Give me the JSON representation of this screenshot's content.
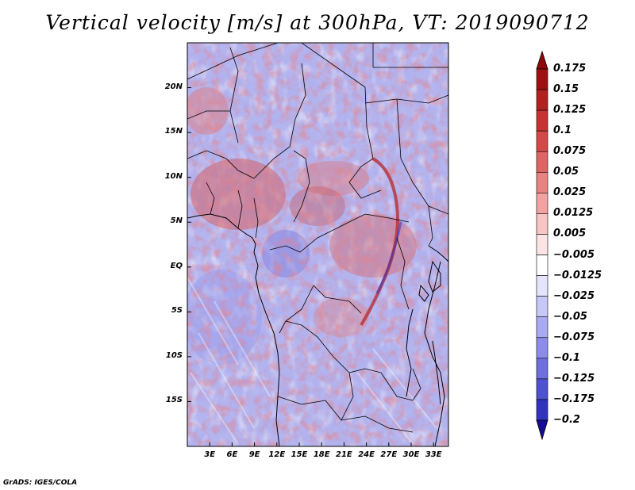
{
  "title": "Vertical velocity [m/s] at 300hPa, VT: 2019090712",
  "credit": "GrADS: IGES/COLA",
  "map": {
    "lon_range": [
      0,
      35
    ],
    "lat_range": [
      -20,
      25
    ],
    "lat_ticks": [
      {
        "value": 20,
        "label": "20N"
      },
      {
        "value": 15,
        "label": "15N"
      },
      {
        "value": 10,
        "label": "10N"
      },
      {
        "value": 5,
        "label": "5N"
      },
      {
        "value": 0,
        "label": "EQ"
      },
      {
        "value": -5,
        "label": "5S"
      },
      {
        "value": -10,
        "label": "10S"
      },
      {
        "value": -15,
        "label": "15S"
      }
    ],
    "lon_ticks": [
      {
        "value": 3,
        "label": "3E"
      },
      {
        "value": 6,
        "label": "6E"
      },
      {
        "value": 9,
        "label": "9E"
      },
      {
        "value": 12,
        "label": "12E"
      },
      {
        "value": 15,
        "label": "15E"
      },
      {
        "value": 18,
        "label": "18E"
      },
      {
        "value": 21,
        "label": "21E"
      },
      {
        "value": 24,
        "label": "24E"
      },
      {
        "value": 27,
        "label": "27E"
      },
      {
        "value": 30,
        "label": "30E"
      },
      {
        "value": 33,
        "label": "33E"
      }
    ]
  },
  "colorbar": {
    "levels": [
      {
        "label": "0.175",
        "color": "#a01010"
      },
      {
        "label": "0.15",
        "color": "#b42020"
      },
      {
        "label": "0.125",
        "color": "#c83232"
      },
      {
        "label": "0.1",
        "color": "#d64848"
      },
      {
        "label": "0.075",
        "color": "#e06464"
      },
      {
        "label": "0.05",
        "color": "#ea8282"
      },
      {
        "label": "0.025",
        "color": "#f2a2a2"
      },
      {
        "label": "0.0125",
        "color": "#f8c4c4"
      },
      {
        "label": "0.005",
        "color": "#fce4e4"
      },
      {
        "label": "−0.005",
        "color": "#ffffff"
      },
      {
        "label": "−0.0125",
        "color": "#e4e4fc"
      },
      {
        "label": "−0.025",
        "color": "#c8c8f8"
      },
      {
        "label": "−0.05",
        "color": "#aaaaf2"
      },
      {
        "label": "−0.075",
        "color": "#8c8cea"
      },
      {
        "label": "−0.1",
        "color": "#6e6ee0"
      },
      {
        "label": "−0.125",
        "color": "#5050d2"
      },
      {
        "label": "−0.175",
        "color": "#3232c0"
      },
      {
        "label": "−0.2",
        "color": "#1e1eaa"
      }
    ],
    "top_color": "#8c0a0a",
    "bottom_color": "#140a96"
  }
}
